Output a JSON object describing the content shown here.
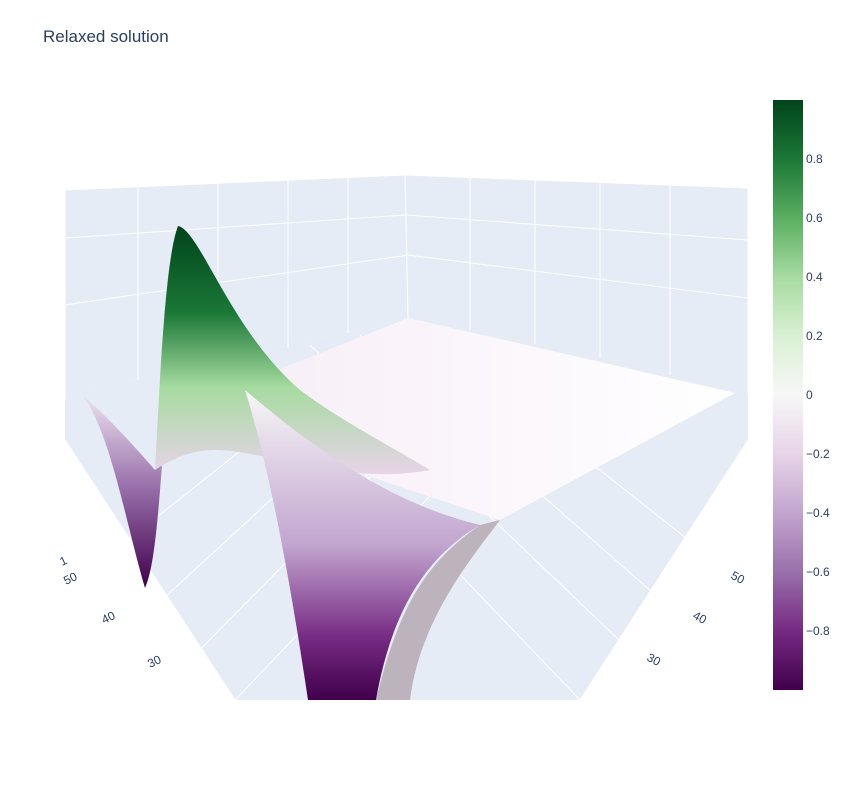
{
  "chart_data": {
    "type": "surface",
    "title": "Relaxed solution",
    "colorscale": [
      [
        0.0,
        "#40004b"
      ],
      [
        0.1,
        "#762a83"
      ],
      [
        0.2,
        "#9970ab"
      ],
      [
        0.3,
        "#c2a5cf"
      ],
      [
        0.4,
        "#e7d4e8"
      ],
      [
        0.5,
        "#f7f7f7"
      ],
      [
        0.6,
        "#d9f0d3"
      ],
      [
        0.7,
        "#a6dba0"
      ],
      [
        0.8,
        "#5aae61"
      ],
      [
        0.9,
        "#1b7837"
      ],
      [
        1.0,
        "#00441b"
      ]
    ],
    "colorbar": {
      "ticks": [
        0.8,
        0.6,
        0.4,
        0.2,
        0,
        -0.2,
        -0.4,
        -0.6,
        -0.8
      ],
      "labels": [
        "0.8",
        "0.6",
        "0.4",
        "0.2",
        "0",
        "−0.2",
        "−0.4",
        "−0.6",
        "−0.8"
      ],
      "range": [
        -1,
        1
      ]
    },
    "x_axis": {
      "ticks": [
        "50",
        "40",
        "30"
      ]
    },
    "y_axis": {
      "ticks": [
        "50",
        "40",
        "30"
      ]
    },
    "z_axis": {
      "ticks": [
        "1"
      ]
    },
    "surface_description": "wave solution: trough about -1 near left edge, peak about 1 near left, trough about -1 at center front, decaying to 0 on the far side"
  }
}
